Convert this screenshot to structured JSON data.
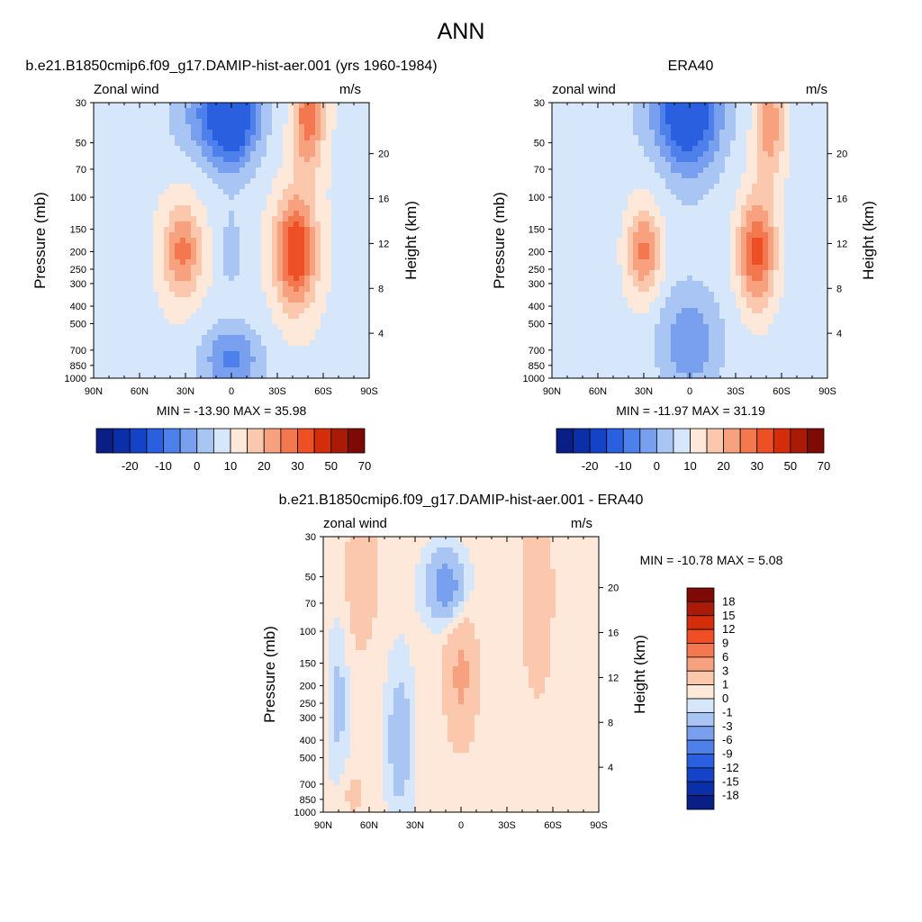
{
  "figure": {
    "title": "ANN"
  },
  "colors": {
    "cmap1": [
      "#0a1f86",
      "#0a2fa8",
      "#1443c8",
      "#2a5fe0",
      "#4d80ea",
      "#79a0ee",
      "#a9c5f4",
      "#d6e6fb",
      "#fde8d9",
      "#fbc7ad",
      "#f7a17f",
      "#f3784f",
      "#ee4f24",
      "#d42d0b",
      "#aa1b07",
      "#7e0a05"
    ],
    "cmap2": [
      "#0a1f86",
      "#0a2fa8",
      "#1443c8",
      "#2a5fe0",
      "#4d80ea",
      "#79a0ee",
      "#a9c5f4",
      "#d6e6fb",
      "#fde8d9",
      "#fbc7ad",
      "#f7a17f",
      "#f3784f",
      "#ee4f24",
      "#d42d0b",
      "#aa1b07",
      "#7e0a05"
    ]
  },
  "chart_data": [
    {
      "id": "model",
      "type": "heatmap",
      "panel_title": "b.e21.B1850cmip6.f09_g17.DAMIP-hist-aer.001 (yrs 1960-1984)",
      "left_label": "Zonal wind",
      "right_label": "m/s",
      "ylabel": "Pressure (mb)",
      "ylabel_right": "Height (km)",
      "x_ticks": [
        "90N",
        "60N",
        "30N",
        "0",
        "30S",
        "60S",
        "90S"
      ],
      "x_range_lat": [
        90,
        -90
      ],
      "y_ticks": [
        "30",
        "50",
        "70",
        "100",
        "150",
        "200",
        "250",
        "300",
        "400",
        "500",
        "700",
        "850",
        "1000"
      ],
      "y_range_mb": [
        30,
        1000
      ],
      "y_right_ticks": [
        "20",
        "16",
        "12",
        "8",
        "4"
      ],
      "min_max_text": "MIN = -13.90  MAX =  35.98",
      "min": -13.9,
      "max": 35.98,
      "colorbar_labels": [
        "-20",
        "-10",
        "0",
        "10",
        "20",
        "30",
        "50",
        "70"
      ],
      "colorbar_levels": [
        -25,
        -20,
        -15,
        -10,
        -5,
        0,
        5,
        10,
        15,
        20,
        25,
        30,
        40,
        50,
        60,
        70
      ]
    },
    {
      "id": "obs",
      "type": "heatmap",
      "panel_title": "ERA40",
      "left_label": "zonal wind",
      "right_label": "m/s",
      "ylabel": "Pressure (mb)",
      "ylabel_right": "Height (km)",
      "x_ticks": [
        "90N",
        "60N",
        "30N",
        "0",
        "30S",
        "60S",
        "90S"
      ],
      "x_range_lat": [
        90,
        -90
      ],
      "y_ticks": [
        "30",
        "50",
        "70",
        "100",
        "150",
        "200",
        "250",
        "300",
        "400",
        "500",
        "700",
        "850",
        "1000"
      ],
      "y_range_mb": [
        30,
        1000
      ],
      "y_right_ticks": [
        "20",
        "16",
        "12",
        "8",
        "4"
      ],
      "min_max_text": "MIN = -11.97  MAX =  31.19",
      "min": -11.97,
      "max": 31.19,
      "colorbar_labels": [
        "-20",
        "-10",
        "0",
        "10",
        "20",
        "30",
        "50",
        "70"
      ],
      "colorbar_levels": [
        -25,
        -20,
        -15,
        -10,
        -5,
        0,
        5,
        10,
        15,
        20,
        25,
        30,
        40,
        50,
        60,
        70
      ]
    },
    {
      "id": "diff",
      "type": "heatmap",
      "panel_title": "b.e21.B1850cmip6.f09_g17.DAMIP-hist-aer.001 - ERA40",
      "left_label": "zonal wind",
      "right_label": "m/s",
      "ylabel": "Pressure (mb)",
      "ylabel_right": "Height (km)",
      "x_ticks": [
        "90N",
        "60N",
        "30N",
        "0",
        "30S",
        "60S",
        "90S"
      ],
      "x_range_lat": [
        90,
        -90
      ],
      "y_ticks": [
        "30",
        "50",
        "70",
        "100",
        "150",
        "200",
        "250",
        "300",
        "400",
        "500",
        "700",
        "850",
        "1000"
      ],
      "y_range_mb": [
        30,
        1000
      ],
      "y_right_ticks": [
        "20",
        "16",
        "12",
        "8",
        "4"
      ],
      "min_max_text": "MIN = -10.78  MAX =   5.08",
      "min": -10.78,
      "max": 5.08,
      "colorbar_labels": [
        "18",
        "15",
        "12",
        "9",
        "6",
        "3",
        "1",
        "0",
        "-1",
        "-3",
        "-6",
        "-9",
        "-12",
        "-15",
        "-18"
      ],
      "colorbar_levels": [
        -18,
        -15,
        -12,
        -9,
        -6,
        -3,
        -1,
        0,
        1,
        3,
        6,
        9,
        12,
        15,
        18
      ]
    }
  ]
}
